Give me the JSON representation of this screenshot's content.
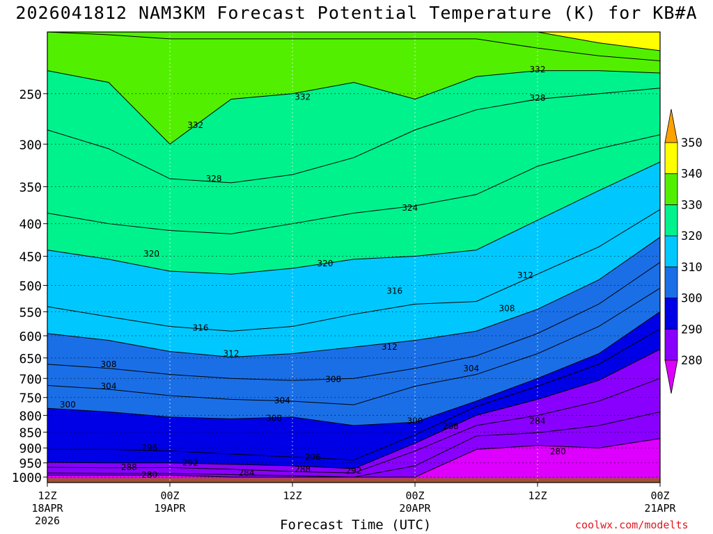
{
  "title": "2026041812 NAM3KM Forecast Potential Temperature (K) for KB#A",
  "credit": "coolwx.com/modelts",
  "chart_data": {
    "type": "heatmap",
    "title": "2026041812 NAM3KM Forecast Potential Temperature (K) for KB#A",
    "xlabel": "Forecast Time (UTC)",
    "ylabel": "",
    "x_unit": "forecast hour",
    "xlim": [
      0,
      60
    ],
    "ylim": [
      1020,
      200
    ],
    "y_scale": "log-pressure",
    "grid": true,
    "x_ticks": [
      {
        "x": 0,
        "lines": [
          "12Z",
          "18APR",
          "2026"
        ]
      },
      {
        "x": 12,
        "lines": [
          "00Z",
          "19APR"
        ]
      },
      {
        "x": 24,
        "lines": [
          "12Z"
        ]
      },
      {
        "x": 36,
        "lines": [
          "00Z",
          "20APR"
        ]
      },
      {
        "x": 48,
        "lines": [
          "12Z"
        ]
      },
      {
        "x": 60,
        "lines": [
          "00Z",
          "21APR"
        ]
      }
    ],
    "y_ticks": [
      250,
      300,
      350,
      400,
      450,
      500,
      550,
      600,
      650,
      700,
      750,
      800,
      850,
      900,
      950,
      1000
    ],
    "colorbar": {
      "levels": [
        280,
        290,
        300,
        310,
        320,
        330,
        340,
        350
      ],
      "colors": [
        "#dd00ff",
        "#8a00ff",
        "#0000e6",
        "#1a6fe6",
        "#00c8ff",
        "#00f28c",
        "#52f000",
        "#ffff00",
        "#ffa200"
      ]
    },
    "x": [
      0,
      6,
      12,
      18,
      24,
      30,
      36,
      42,
      48,
      54,
      60
    ],
    "isentropes": [
      {
        "theta": 280,
        "p": [
          993,
          993,
          993,
          1000,
          1000,
          1000,
          1000,
          905,
          892,
          900,
          870
        ]
      },
      {
        "theta": 284,
        "p": [
          985,
          987,
          987,
          991,
          995,
          1000,
          960,
          862,
          852,
          830,
          790
        ]
      },
      {
        "theta": 288,
        "p": [
          965,
          967,
          966,
          972,
          980,
          985,
          910,
          830,
          800,
          760,
          700
        ]
      },
      {
        "theta": 292,
        "p": [
          948,
          950,
          950,
          955,
          960,
          970,
          885,
          800,
          755,
          705,
          630
        ]
      },
      {
        "theta": 296,
        "p": [
          905,
          905,
          910,
          920,
          930,
          940,
          858,
          775,
          720,
          665,
          585
        ]
      },
      {
        "theta": 300,
        "p": [
          780,
          790,
          805,
          810,
          805,
          830,
          820,
          760,
          700,
          640,
          550
        ]
      },
      {
        "theta": 304,
        "p": [
          718,
          728,
          745,
          755,
          760,
          770,
          720,
          690,
          640,
          580,
          505
        ]
      },
      {
        "theta": 308,
        "p": [
          665,
          675,
          690,
          700,
          705,
          700,
          675,
          645,
          595,
          535,
          460
        ]
      },
      {
        "theta": 312,
        "p": [
          595,
          610,
          635,
          648,
          640,
          625,
          610,
          590,
          545,
          490,
          420
        ]
      },
      {
        "theta": 316,
        "p": [
          540,
          560,
          580,
          590,
          580,
          555,
          535,
          530,
          480,
          435,
          380
        ]
      },
      {
        "theta": 320,
        "p": [
          440,
          455,
          475,
          480,
          470,
          455,
          450,
          440,
          395,
          355,
          320
        ]
      },
      {
        "theta": 324,
        "p": [
          385,
          400,
          410,
          415,
          400,
          385,
          375,
          360,
          325,
          305,
          290
        ]
      },
      {
        "theta": 328,
        "p": [
          285,
          305,
          340,
          345,
          335,
          315,
          285,
          265,
          255,
          250,
          245
        ]
      },
      {
        "theta": 332,
        "p": [
          230,
          240,
          300,
          255,
          250,
          240,
          255,
          235,
          230,
          230,
          232
        ]
      },
      {
        "theta": 336,
        "p": [
          200,
          202,
          205,
          205,
          205,
          205,
          205,
          205,
          212,
          218,
          222
        ]
      },
      {
        "theta": 340,
        "p": [
          200,
          200,
          200,
          200,
          200,
          200,
          200,
          200,
          200,
          208,
          214
        ]
      }
    ],
    "contour_labels": [
      {
        "value": "332",
        "x": 14.5,
        "p": 280
      },
      {
        "value": "332",
        "x": 25.0,
        "p": 253
      },
      {
        "value": "332",
        "x": 48.0,
        "p": 229
      },
      {
        "value": "328",
        "x": 48.0,
        "p": 254
      },
      {
        "value": "328",
        "x": 16.3,
        "p": 340
      },
      {
        "value": "324",
        "x": 35.5,
        "p": 378
      },
      {
        "value": "320",
        "x": 10.2,
        "p": 446
      },
      {
        "value": "320",
        "x": 27.2,
        "p": 462
      },
      {
        "value": "316",
        "x": 34.0,
        "p": 510
      },
      {
        "value": "316",
        "x": 15.0,
        "p": 583
      },
      {
        "value": "312",
        "x": 18.0,
        "p": 640
      },
      {
        "value": "312",
        "x": 33.5,
        "p": 625
      },
      {
        "value": "312",
        "x": 46.8,
        "p": 482
      },
      {
        "value": "308",
        "x": 6.0,
        "p": 665
      },
      {
        "value": "308",
        "x": 28.0,
        "p": 702
      },
      {
        "value": "308",
        "x": 45.0,
        "p": 543
      },
      {
        "value": "304",
        "x": 6.0,
        "p": 720
      },
      {
        "value": "304",
        "x": 23.0,
        "p": 758
      },
      {
        "value": "304",
        "x": 41.5,
        "p": 675
      },
      {
        "value": "300",
        "x": 2.0,
        "p": 770
      },
      {
        "value": "300",
        "x": 22.2,
        "p": 808
      },
      {
        "value": "300",
        "x": 36.0,
        "p": 817
      },
      {
        "value": "296",
        "x": 10.0,
        "p": 900
      },
      {
        "value": "296",
        "x": 26.0,
        "p": 930
      },
      {
        "value": "292",
        "x": 14.0,
        "p": 950
      },
      {
        "value": "292",
        "x": 30.0,
        "p": 977
      },
      {
        "value": "288",
        "x": 8.0,
        "p": 965
      },
      {
        "value": "288",
        "x": 25.0,
        "p": 972
      },
      {
        "value": "288",
        "x": 39.5,
        "p": 832
      },
      {
        "value": "284",
        "x": 19.5,
        "p": 985
      },
      {
        "value": "284",
        "x": 48.0,
        "p": 817
      },
      {
        "value": "280",
        "x": 10.0,
        "p": 992
      },
      {
        "value": "280",
        "x": 50.0,
        "p": 912
      }
    ]
  }
}
